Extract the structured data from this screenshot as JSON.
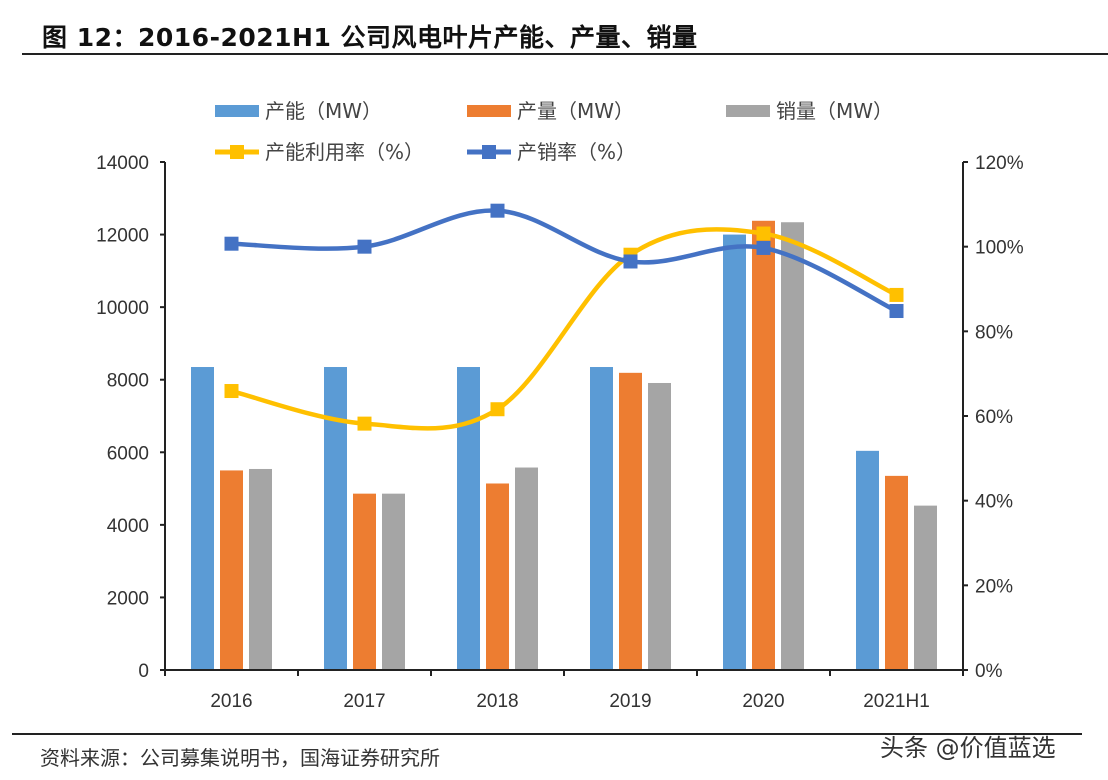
{
  "title": "图 12：2016-2021H1 公司风电叶片产能、产量、销量",
  "source": "资料来源：公司募集说明书，国海证券研究所",
  "watermark": "头条 @价值蓝选",
  "chart_data": {
    "type": "bar",
    "title": "图 12：2016-2021H1 公司风电叶片产能、产量、销量",
    "categories": [
      "2016",
      "2017",
      "2018",
      "2019",
      "2020",
      "2021H1"
    ],
    "y_left": {
      "range": [
        0,
        14000
      ],
      "ticks": [
        "0",
        "2000",
        "4000",
        "6000",
        "8000",
        "10000",
        "12000",
        "14000"
      ]
    },
    "y_right": {
      "range": [
        0,
        120
      ],
      "ticks": [
        "0%",
        "20%",
        "40%",
        "60%",
        "80%",
        "100%",
        "120%"
      ]
    },
    "grid": false,
    "legend_position": "top",
    "series": [
      {
        "name": "产能（MW）",
        "type": "bar",
        "axis": "left",
        "color": "#5b9bd5",
        "values": [
          8350,
          8350,
          8350,
          8350,
          12000,
          6040
        ]
      },
      {
        "name": "产量（MW）",
        "type": "bar",
        "axis": "left",
        "color": "#ed7d31",
        "values": [
          5500,
          4860,
          5140,
          8190,
          12380,
          5350
        ]
      },
      {
        "name": "销量（MW）",
        "type": "bar",
        "axis": "left",
        "color": "#a5a5a5",
        "values": [
          5540,
          4860,
          5580,
          7910,
          12340,
          4530
        ]
      },
      {
        "name": "产能利用率（%）",
        "type": "line",
        "axis": "right",
        "color": "#ffc000",
        "values": [
          65.9,
          58.2,
          61.6,
          98.1,
          103.1,
          88.6
        ]
      },
      {
        "name": "产销率（%）",
        "type": "line",
        "axis": "right",
        "color": "#4472c4",
        "values": [
          100.7,
          100.0,
          108.5,
          96.5,
          99.7,
          84.8
        ]
      }
    ]
  }
}
